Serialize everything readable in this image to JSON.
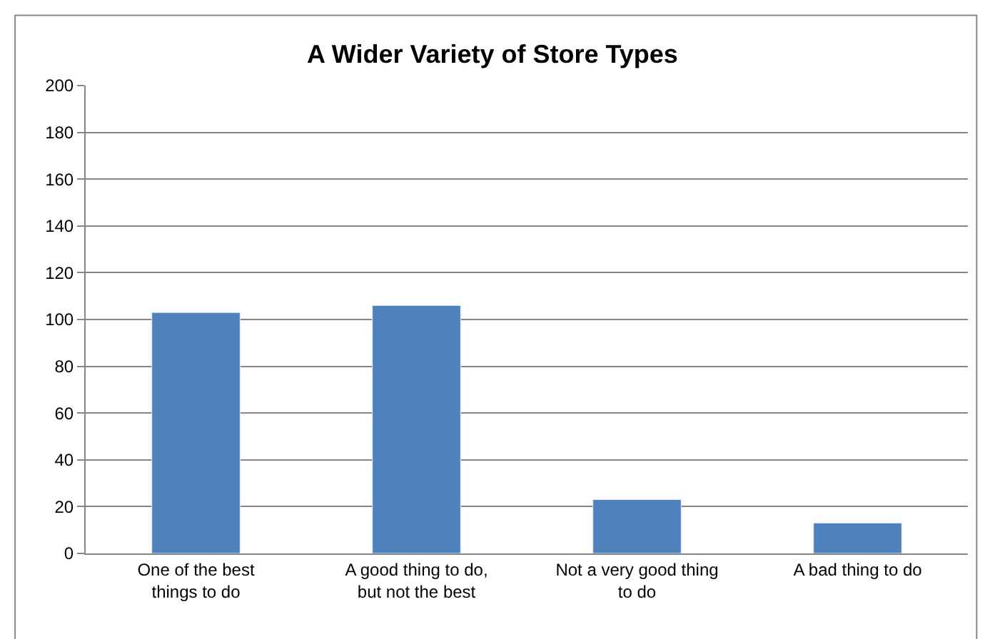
{
  "chart_data": {
    "type": "bar",
    "title": "A Wider Variety of Store Types",
    "categories": [
      "One of the best things to do",
      "A good thing to do, but not the best",
      "Not a very good thing to do",
      "A bad thing to do"
    ],
    "values": [
      103,
      106,
      23,
      13
    ],
    "color": "#4f81bd",
    "ylim": [
      0,
      200
    ],
    "yticks": [
      0,
      20,
      40,
      60,
      80,
      100,
      120,
      140,
      160,
      180,
      200
    ],
    "grid": "y",
    "legend": false
  }
}
